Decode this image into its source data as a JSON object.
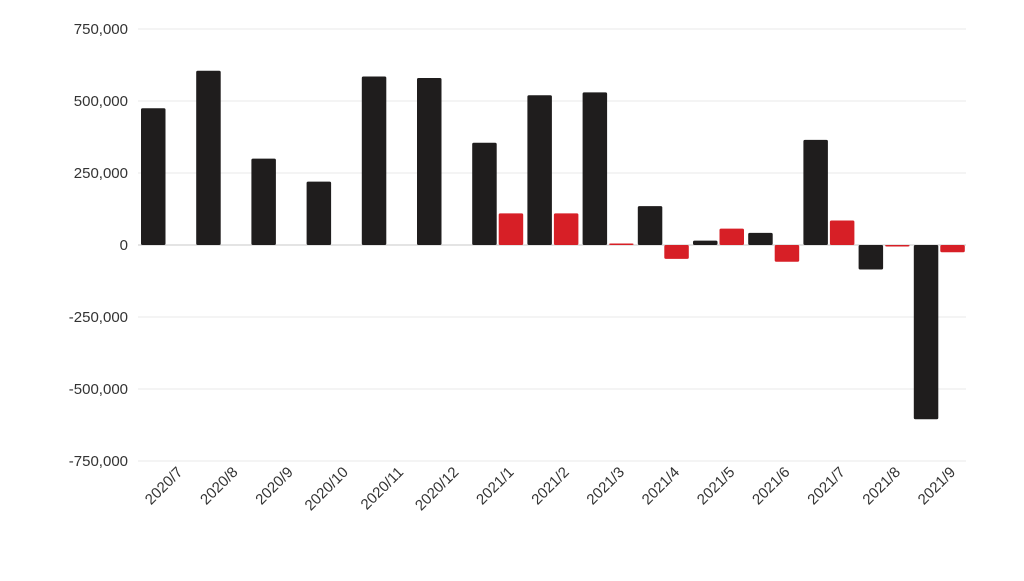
{
  "chart_data": {
    "type": "bar",
    "categories": [
      "2020/7",
      "2020/8",
      "2020/9",
      "2020/10",
      "2020/11",
      "2020/12",
      "2021/1",
      "2021/2",
      "2021/3",
      "2021/4",
      "2021/5",
      "2021/6",
      "2021/7",
      "2021/8",
      "2021/9"
    ],
    "series": [
      {
        "color": "#1f1d1d",
        "values": [
          475000,
          605000,
          300000,
          220000,
          585000,
          580000,
          355000,
          520000,
          530000,
          135000,
          15000,
          42000,
          365000,
          -85000,
          -605000
        ]
      },
      {
        "color": "#d71f26",
        "values": [
          null,
          null,
          null,
          null,
          null,
          null,
          110000,
          110000,
          5000,
          -48000,
          57000,
          -58000,
          85000,
          -5000,
          -25000
        ]
      }
    ],
    "ylim": [
      -750000,
      750000
    ],
    "yticks": [
      750000,
      500000,
      250000,
      0,
      -250000,
      -500000,
      -750000
    ],
    "ytick_labels": [
      "750,000",
      "500,000",
      "250,000",
      "0",
      "-250,000",
      "-500,000",
      "-750,000"
    ],
    "grid": true,
    "title": "",
    "xlabel": "",
    "ylabel": ""
  }
}
